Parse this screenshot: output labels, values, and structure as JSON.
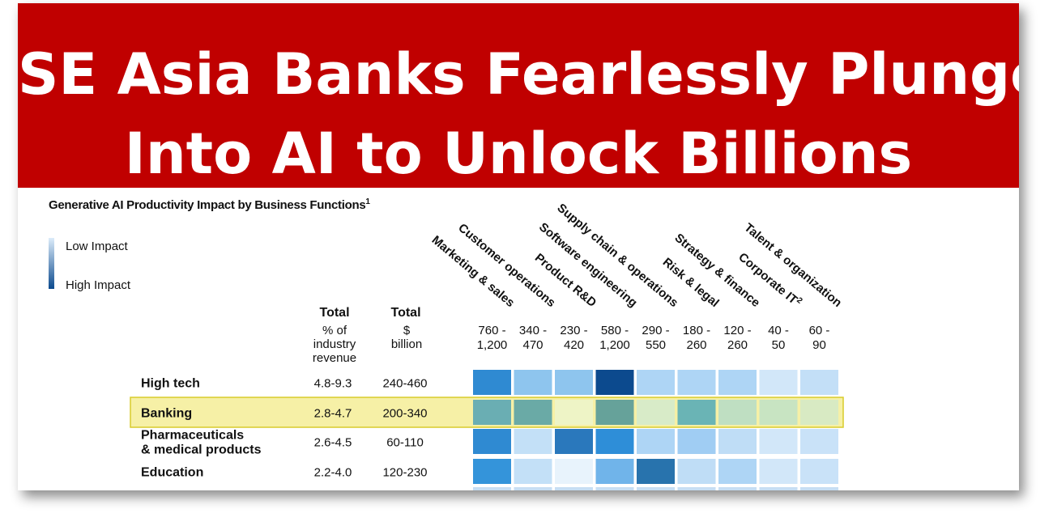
{
  "banner": {
    "line1": "SE Asia Banks Fearlessly Plunge",
    "line2": "Into AI to Unlock Billions"
  },
  "colors": {
    "banner": "#c00000",
    "highlight": "#f6f0a6",
    "highlight_border": "#d8cc2c"
  },
  "chart_data": {
    "type": "heatmap",
    "title": "Generative AI Productivity Impact by Business Functions",
    "title_footnote": "1",
    "legend": {
      "low": "Low Impact",
      "high": "High Impact"
    },
    "column_headers": {
      "total_pct": {
        "title": "Total",
        "sub": [
          "% of",
          "industry",
          "revenue"
        ]
      },
      "total_usd": {
        "title": "Total",
        "sub": [
          "$",
          "billion"
        ]
      }
    },
    "functions": [
      {
        "label": "Marketing & sales",
        "range": [
          "760 -",
          "1,200"
        ]
      },
      {
        "label": "Customer operations",
        "range": [
          "340 -",
          "470"
        ]
      },
      {
        "label": "Product R&D",
        "range": [
          "230 -",
          "420"
        ]
      },
      {
        "label": "Software engineering",
        "range": [
          "580 -",
          "1,200"
        ]
      },
      {
        "label": "Supply chain & operations",
        "range": [
          "290 -",
          "550"
        ]
      },
      {
        "label": "Risk & legal",
        "range": [
          "180 -",
          "260"
        ]
      },
      {
        "label": "Strategy & finance",
        "range": [
          "120 -",
          "260"
        ]
      },
      {
        "label": "Corporate IT",
        "footnote": "2",
        "range": [
          "40 -",
          "50"
        ]
      },
      {
        "label": "Talent & organization",
        "range": [
          "60 -",
          "90"
        ]
      }
    ],
    "rows": [
      {
        "industry": [
          "High tech"
        ],
        "pct": "4.8-9.3",
        "usd": "240-460",
        "highlight": false,
        "cells": [
          "#2f8ad2",
          "#8ec5ee",
          "#8ec5ee",
          "#0c4a8e",
          "#aed5f5",
          "#aed5f5",
          "#aed5f5",
          "#d2e7f9",
          "#c3dff7"
        ]
      },
      {
        "industry": [
          "Banking"
        ],
        "pct": "2.8-4.7",
        "usd": "200-340",
        "highlight": true,
        "cells": [
          "#6aaeb3",
          "#6aaaa6",
          "#eef4c6",
          "#66a29a",
          "#d8ebc8",
          "#6ab4b5",
          "#bfdfc2",
          "#c8e4c2",
          "#d8eac3"
        ]
      },
      {
        "industry": [
          "Pharmaceuticals",
          "& medical products"
        ],
        "pct": "2.6-4.5",
        "usd": "60-110",
        "highlight": false,
        "cells": [
          "#2f8ad2",
          "#c3e0f7",
          "#2a78bc",
          "#2e8ed8",
          "#aed5f5",
          "#a0cdf3",
          "#bfddf6",
          "#d2e7f9",
          "#c9e2f8"
        ]
      },
      {
        "industry": [
          "Education"
        ],
        "pct": "2.2-4.0",
        "usd": "120-230",
        "highlight": false,
        "cells": [
          "#3494da",
          "#c3e0f7",
          "#e8f3fc",
          "#70b4ea",
          "#2873ad",
          "#bfddf6",
          "#aed5f5",
          "#d2e7f9",
          "#c9e2f8"
        ]
      }
    ]
  }
}
